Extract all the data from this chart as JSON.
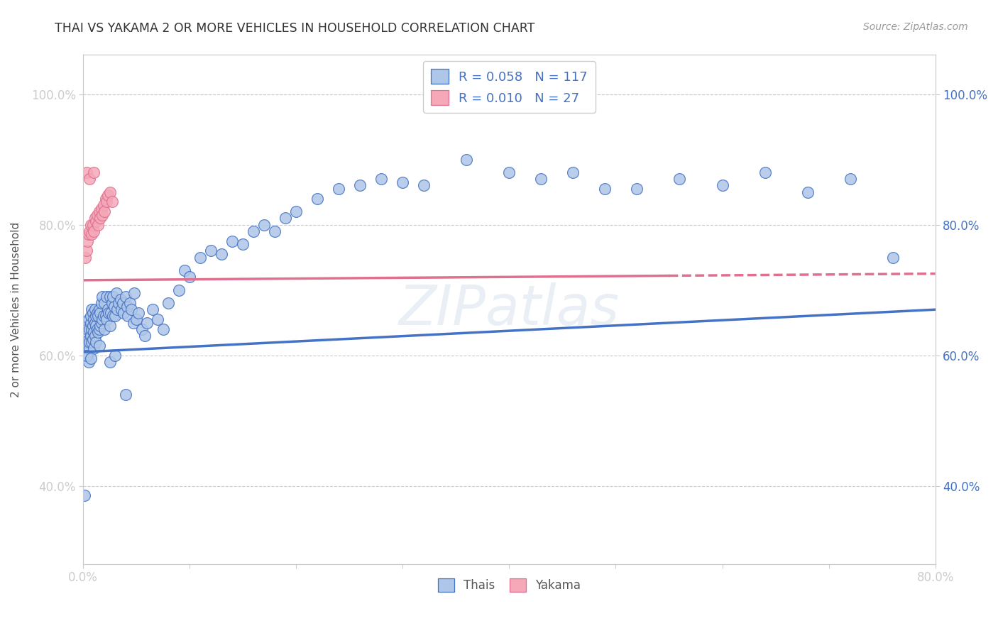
{
  "title": "THAI VS YAKAMA 2 OR MORE VEHICLES IN HOUSEHOLD CORRELATION CHART",
  "source": "Source: ZipAtlas.com",
  "ylabel": "2 or more Vehicles in Household",
  "xmin": 0.0,
  "xmax": 0.8,
  "ymin": 0.28,
  "ymax": 1.06,
  "yticks": [
    0.4,
    0.6,
    0.8,
    1.0
  ],
  "yticklabels": [
    "40.0%",
    "60.0%",
    "80.0%",
    "100.0%"
  ],
  "xticks": [
    0.0,
    0.1,
    0.2,
    0.3,
    0.4,
    0.5,
    0.6,
    0.7,
    0.8
  ],
  "xticklabels": [
    "0.0%",
    "",
    "",
    "",
    "",
    "",
    "",
    "",
    "80.0%"
  ],
  "legend_thai_R": "0.058",
  "legend_thai_N": "117",
  "legend_yakama_R": "0.010",
  "legend_yakama_N": "27",
  "thai_fill": "#aec6e8",
  "thai_edge": "#4472c4",
  "yakama_fill": "#f4a8b8",
  "yakama_edge": "#e07090",
  "thai_line_color": "#4472c4",
  "yakama_line_color": "#e07090",
  "watermark": "ZIPatlas",
  "thai_line_x0": 0.0,
  "thai_line_y0": 0.605,
  "thai_line_x1": 0.8,
  "thai_line_y1": 0.67,
  "yakama_line_x0": 0.0,
  "yakama_line_y0": 0.715,
  "yakama_line_x1": 0.8,
  "yakama_line_y1": 0.725,
  "thai_x": [
    0.002,
    0.003,
    0.004,
    0.004,
    0.005,
    0.005,
    0.005,
    0.006,
    0.006,
    0.006,
    0.007,
    0.007,
    0.007,
    0.008,
    0.008,
    0.008,
    0.009,
    0.009,
    0.009,
    0.01,
    0.01,
    0.01,
    0.011,
    0.011,
    0.011,
    0.012,
    0.012,
    0.012,
    0.013,
    0.013,
    0.014,
    0.014,
    0.015,
    0.015,
    0.016,
    0.016,
    0.017,
    0.017,
    0.018,
    0.018,
    0.019,
    0.02,
    0.02,
    0.021,
    0.022,
    0.022,
    0.023,
    0.024,
    0.025,
    0.025,
    0.026,
    0.027,
    0.028,
    0.028,
    0.029,
    0.03,
    0.031,
    0.032,
    0.033,
    0.035,
    0.036,
    0.037,
    0.038,
    0.04,
    0.041,
    0.042,
    0.044,
    0.045,
    0.047,
    0.048,
    0.05,
    0.052,
    0.055,
    0.058,
    0.06,
    0.065,
    0.07,
    0.075,
    0.08,
    0.09,
    0.095,
    0.1,
    0.11,
    0.12,
    0.13,
    0.14,
    0.15,
    0.16,
    0.17,
    0.18,
    0.19,
    0.2,
    0.22,
    0.24,
    0.26,
    0.28,
    0.3,
    0.32,
    0.36,
    0.4,
    0.43,
    0.46,
    0.49,
    0.52,
    0.56,
    0.6,
    0.64,
    0.68,
    0.72,
    0.76,
    0.001,
    0.003,
    0.007,
    0.015,
    0.025,
    0.03,
    0.04
  ],
  "thai_y": [
    0.62,
    0.615,
    0.6,
    0.64,
    0.59,
    0.625,
    0.655,
    0.61,
    0.64,
    0.62,
    0.63,
    0.65,
    0.66,
    0.62,
    0.64,
    0.67,
    0.625,
    0.645,
    0.665,
    0.61,
    0.635,
    0.655,
    0.63,
    0.65,
    0.67,
    0.62,
    0.645,
    0.66,
    0.64,
    0.665,
    0.635,
    0.66,
    0.64,
    0.67,
    0.645,
    0.665,
    0.65,
    0.68,
    0.655,
    0.69,
    0.66,
    0.64,
    0.68,
    0.66,
    0.655,
    0.69,
    0.67,
    0.665,
    0.645,
    0.69,
    0.665,
    0.68,
    0.66,
    0.69,
    0.675,
    0.66,
    0.695,
    0.67,
    0.68,
    0.685,
    0.67,
    0.68,
    0.665,
    0.69,
    0.675,
    0.66,
    0.68,
    0.67,
    0.65,
    0.695,
    0.655,
    0.665,
    0.64,
    0.63,
    0.65,
    0.67,
    0.655,
    0.64,
    0.68,
    0.7,
    0.73,
    0.72,
    0.75,
    0.76,
    0.755,
    0.775,
    0.77,
    0.79,
    0.8,
    0.79,
    0.81,
    0.82,
    0.84,
    0.855,
    0.86,
    0.87,
    0.865,
    0.86,
    0.9,
    0.88,
    0.87,
    0.88,
    0.855,
    0.855,
    0.87,
    0.86,
    0.88,
    0.85,
    0.87,
    0.75,
    0.385,
    0.6,
    0.595,
    0.615,
    0.59,
    0.6,
    0.54
  ],
  "yakama_x": [
    0.002,
    0.003,
    0.004,
    0.005,
    0.006,
    0.007,
    0.008,
    0.009,
    0.01,
    0.011,
    0.012,
    0.013,
    0.014,
    0.015,
    0.016,
    0.017,
    0.018,
    0.019,
    0.02,
    0.021,
    0.022,
    0.023,
    0.025,
    0.027,
    0.003,
    0.006,
    0.01
  ],
  "yakama_y": [
    0.75,
    0.76,
    0.775,
    0.785,
    0.79,
    0.8,
    0.785,
    0.8,
    0.79,
    0.81,
    0.805,
    0.815,
    0.8,
    0.82,
    0.81,
    0.825,
    0.815,
    0.83,
    0.82,
    0.84,
    0.835,
    0.845,
    0.85,
    0.835,
    0.88,
    0.87,
    0.88
  ]
}
